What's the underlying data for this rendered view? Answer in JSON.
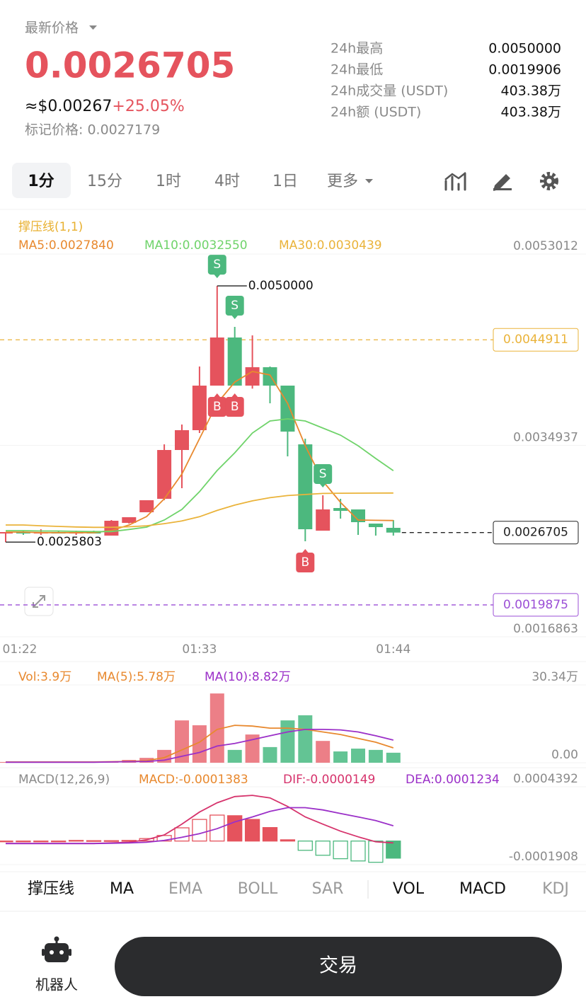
{
  "header": {
    "label": "最新价格",
    "price": "0.0026705",
    "usd": "≈$0.00267",
    "change": "+25.05%",
    "mark_price": "标记价格: 0.0027179"
  },
  "stats": [
    {
      "label": "24h最高",
      "value": "0.0050000"
    },
    {
      "label": "24h最低",
      "value": "0.0019906"
    },
    {
      "label": "24h成交量 (USDT)",
      "value": "403.38万"
    },
    {
      "label": "24h额 (USDT)",
      "value": "403.38万"
    }
  ],
  "intervals": [
    {
      "label": "1分",
      "active": true
    },
    {
      "label": "15分",
      "active": false
    },
    {
      "label": "1时",
      "active": false
    },
    {
      "label": "4时",
      "active": false
    },
    {
      "label": "1日",
      "active": false
    },
    {
      "label": "更多",
      "active": false
    }
  ],
  "chart_data": [
    {
      "type": "candlestick",
      "title": "撑压线(1,1)",
      "categories": [
        "01:22",
        null,
        null,
        null,
        null,
        null,
        null,
        null,
        null,
        null,
        null,
        "01:33",
        null,
        null,
        null,
        null,
        null,
        null,
        null,
        null,
        null,
        null,
        "01:44"
      ],
      "open": [
        0.0026618,
        0.0026752,
        0.0026618,
        0.0026752,
        0.0026618,
        0.0026752,
        0.0026418,
        0.002762,
        0.0028623,
        0.0029892,
        0.0034503,
        0.0036374,
        0.0040583,
        0.0045127,
        0.0040583,
        0.0042321,
        0.0040583,
        0.0035037,
        0.0026885,
        0.0029024,
        0.002889,
        0.0027554,
        0.0027153
      ],
      "high": [
        0.0026752,
        0.0026885,
        0.0027019,
        0.0026885,
        0.0026885,
        0.0026885,
        0.0027888,
        0.0028155,
        0.0029759,
        0.0035037,
        0.0036908,
        0.0042388,
        0.005,
        0.004613,
        0.0045328,
        0.0042388,
        0.0040583,
        0.0035572,
        0.0030226,
        0.0029892,
        0.002889,
        0.0027554,
        0.0027888
      ],
      "low": [
        0.0025803,
        0.0026484,
        0.0026484,
        0.0026618,
        0.0026484,
        0.0026618,
        0.0026418,
        0.0027554,
        0.0028623,
        0.0029759,
        0.0030895,
        0.0036107,
        0.0040583,
        0.0040583,
        0.00403,
        0.0038913,
        0.0033901,
        0.0025883,
        0.0026885,
        0.0028021,
        0.0026484,
        0.0026418,
        0.0026418
      ],
      "close": [
        0.0026752,
        0.0026618,
        0.0026752,
        0.0026618,
        0.0026752,
        0.0026618,
        0.0027821,
        0.0028155,
        0.0029759,
        0.0034503,
        0.0036374,
        0.0040583,
        0.0045127,
        0.0040583,
        0.0042321,
        0.0040583,
        0.003624,
        0.0027019,
        0.002889,
        0.0028756,
        0.0027687,
        0.0027219,
        0.0026705
      ],
      "up_color": "#e5535d",
      "down_color": "#4cb87e",
      "series": [
        {
          "name": "MA5:0.0027840",
          "color": "#e8892f",
          "values": [
            0.002675,
            0.002675,
            0.00267,
            0.00267,
            0.00267,
            0.00267,
            0.00269,
            0.002742,
            0.0028222,
            0.0029892,
            0.0032231,
            0.0035572,
            0.0038913,
            0.0040918,
            0.004192,
            0.0041586,
            0.0038913,
            0.0034903,
            0.0031562,
            0.0029557,
            0.0027888,
            0.002786,
            0.002784
          ]
        },
        {
          "name": "MA10:0.0032550",
          "color": "#6fd36a",
          "values": [
            0.0026885,
            0.0026885,
            0.002685,
            0.002685,
            0.002682,
            0.00268,
            0.00268,
            0.0027,
            0.0027219,
            0.0027888,
            0.002889,
            0.003057,
            0.0032565,
            0.0034235,
            0.0036107,
            0.0037243,
            0.0037443,
            0.0037243,
            0.0036573,
            0.0035905,
            0.0034903,
            0.00337,
            0.003255
          ]
        },
        {
          "name": "MA30:0.0030439",
          "color": "#eab33a",
          "values": [
            0.002742,
            0.002742,
            0.002735,
            0.002729,
            0.002723,
            0.00272,
            0.00272,
            0.002725,
            0.002735,
            0.002755,
            0.00278,
            0.00282,
            0.00288,
            0.00293,
            0.00297,
            0.003,
            0.00302,
            0.00303,
            0.00304,
            0.003042,
            0.003043,
            0.0030435,
            0.0030439
          ]
        }
      ],
      "ylim": [
        0.0016863,
        0.0053012
      ],
      "yticks": [
        0.0053012,
        0.0034937,
        0.0016863
      ],
      "levels": [
        {
          "value": 0.0044911,
          "color": "#eab33a",
          "current": false
        },
        {
          "value": 0.0019875,
          "color": "#9b4fd6",
          "current": false
        },
        {
          "value": 0.0026705,
          "color": "#222222",
          "current": true
        }
      ],
      "extremes": [
        {
          "value": 0.005,
          "label": "0.0050000",
          "candle": 12
        },
        {
          "value": 0.0025803,
          "label": "0.0025803",
          "candle": 0
        }
      ],
      "trades": [
        {
          "label": "S",
          "candle": 12
        },
        {
          "label": "S",
          "candle": 13
        },
        {
          "label": "B",
          "candle": 12
        },
        {
          "label": "B",
          "candle": 13
        },
        {
          "label": "S",
          "candle": 18
        },
        {
          "label": "B",
          "candle": 17
        }
      ]
    },
    {
      "type": "bar",
      "series": [
        {
          "name": "Vol:3.9万",
          "color": "#e8892f",
          "type": "bar",
          "values": [
            0.3,
            0.2,
            0.3,
            0.2,
            0.3,
            0.3,
            0.55,
            1.1,
            1.9,
            5.0,
            16.5,
            14.6,
            27.0,
            5.0,
            11.0,
            6.1,
            16.5,
            18.5,
            8.5,
            4.4,
            5.5,
            5.0,
            3.9
          ],
          "colors": [
            "#ec7f87",
            "#63c494",
            "#ec7f87",
            "#63c494",
            "#ec7f87",
            "#63c494",
            "#ec7f87",
            "#ec7f87",
            "#ec7f87",
            "#ec7f87",
            "#ec7f87",
            "#ec7f87",
            "#ec7f87",
            "#63c494",
            "#ec7f87",
            "#63c494",
            "#63c494",
            "#63c494",
            "#ec7f87",
            "#63c494",
            "#63c494",
            "#63c494",
            "#63c494"
          ]
        },
        {
          "name": "MA(5):5.78万",
          "color": "#e8892f",
          "values": [
            0.3,
            0.3,
            0.3,
            0.3,
            0.3,
            0.3,
            0.4,
            0.5,
            0.8,
            2.0,
            5.0,
            8.0,
            13.0,
            14.6,
            14.3,
            13.5,
            13.5,
            13.0,
            12.0,
            11.0,
            9.5,
            8.0,
            5.78
          ]
        },
        {
          "name": "MA(10):8.82万",
          "color": "#9b30c8",
          "values": [
            0.2,
            0.2,
            0.2,
            0.2,
            0.2,
            0.2,
            0.3,
            0.4,
            0.5,
            1.0,
            2.5,
            4.0,
            6.5,
            7.5,
            9.0,
            10.5,
            12.0,
            13.0,
            13.0,
            12.8,
            12.0,
            10.5,
            8.82
          ]
        }
      ],
      "ylim": [
        0,
        30.34
      ],
      "yticks": [
        {
          "value": 30.34,
          "label": "30.34万"
        },
        {
          "value": 0,
          "label": "0.00"
        }
      ]
    },
    {
      "type": "macd",
      "title": "MACD(12,26,9)",
      "up_color": "#e5535d",
      "down_color": "#4cb87e",
      "series": [
        {
          "name": "MACD:-0.0001383",
          "color": "#e8892f",
          "type": "bar",
          "values": [
            0,
            0,
            0,
            0,
            5e-06,
            3e-06,
            3e-06,
            5e-06,
            2e-05,
            4.5e-05,
            0.000107,
            0.000175,
            0.00021,
            0.000205,
            0.000175,
            0.000109,
            1e-05,
            -7.5e-05,
            -0.000115,
            -0.000143,
            -0.000161,
            -0.000172,
            -0.0001383
          ]
        },
        {
          "name": "DIF:-0.0000149",
          "color": "#d6336c",
          "values": [
            -2e-05,
            -2e-05,
            -2e-05,
            -2e-05,
            -2e-05,
            -2e-05,
            -1.5e-05,
            -1e-05,
            1e-05,
            5e-05,
            0.000137,
            0.000235,
            0.00031,
            0.00036,
            0.00037,
            0.000349,
            0.00028,
            0.000195,
            0.000137,
            8e-05,
            3.4e-05,
            -6e-06,
            -1.49e-05
          ]
        },
        {
          "name": "DEA:0.0001234",
          "color": "#9b30c8",
          "values": [
            -2e-05,
            -2e-05,
            -2e-05,
            -2e-05,
            -2e-05,
            -2e-05,
            -1.8e-05,
            -1.5e-05,
            -1e-05,
            5e-06,
            3e-05,
            6e-05,
            0.0001,
            0.000155,
            0.000195,
            0.00024,
            0.00027,
            0.00027,
            0.000252,
            0.000223,
            0.000195,
            0.000166,
            0.0001234
          ]
        }
      ],
      "ylim": [
        -0.0001908,
        0.0004392
      ],
      "yticks": [
        0.0004392,
        -0.0001908
      ]
    }
  ],
  "indicators": [
    {
      "label": "撑压线",
      "active": true
    },
    {
      "label": "MA",
      "active": true
    },
    {
      "label": "EMA",
      "active": false
    },
    {
      "label": "BOLL",
      "active": false
    },
    {
      "label": "SAR",
      "active": false
    },
    {
      "label": "VOL",
      "active": true
    },
    {
      "label": "MACD",
      "active": true
    },
    {
      "label": "KDJ",
      "active": false
    }
  ],
  "bottom": {
    "robot": "机器人",
    "trade": "交易"
  }
}
